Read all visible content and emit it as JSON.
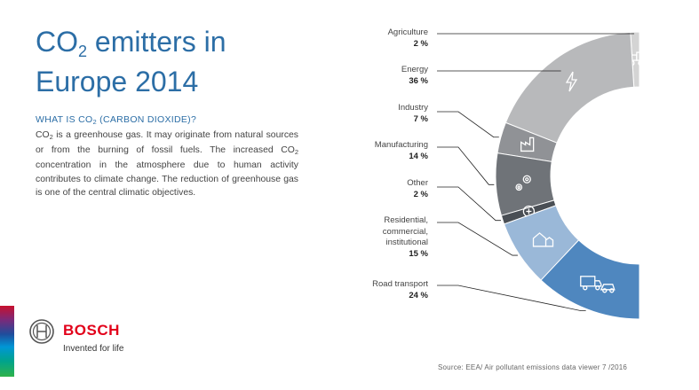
{
  "page": {
    "title_line1_pre": "CO",
    "title_line1_sub": "2",
    "title_line1_post": " emitters in",
    "title_line2": "Europe 2014",
    "question_pre": "WHAT IS CO",
    "question_sub": "2",
    "question_post": " (CARBON DIOXIDE)?",
    "body_p1_pre": "CO",
    "body_p1_sub": "2",
    "body_p1_mid": " is a greenhouse gas. It may originate from natural sources or from the burning of fossil fuels. The increased CO",
    "body_p1_sub2": "2",
    "body_p1_post": " concentration in the atmosphere due to human activity contributes to climate change. The reduction of greenhouse gas is one of the central climatic objectives.",
    "source": "Source: EEA/ Air pollutant emissions data viewer 7 /2016"
  },
  "brand": {
    "name": "BOSCH",
    "tagline": "Invented for life",
    "color": "#e2001a"
  },
  "chart_data": {
    "type": "pie",
    "title": "CO2 emitters in Europe 2014",
    "unit": "%",
    "slices": [
      {
        "label": "Agriculture",
        "value": 2,
        "value_label": "2 %",
        "color": "#d4d4d4",
        "icon": "tractor-icon"
      },
      {
        "label": "Energy",
        "value": 36,
        "value_label": "36 %",
        "color": "#b8b9bb",
        "icon": "lightning-icon"
      },
      {
        "label": "Industry",
        "value": 7,
        "value_label": "7 %",
        "color": "#909296",
        "icon": "factory-icon"
      },
      {
        "label": "Manufacturing",
        "value": 14,
        "value_label": "14 %",
        "color": "#6f7378",
        "icon": "gears-icon"
      },
      {
        "label": "Other",
        "value": 2,
        "value_label": "2 %",
        "color": "#4a4f55",
        "icon": "plus-icon"
      },
      {
        "label": "Residential, commercial, institutional",
        "value": 15,
        "value_label": "15 %",
        "color": "#9ab8d8",
        "icon": "house-icon"
      },
      {
        "label": "Road transport",
        "value": 24,
        "value_label": "24 %",
        "color": "#4f87bf",
        "icon": "truck-car-icon"
      }
    ]
  }
}
